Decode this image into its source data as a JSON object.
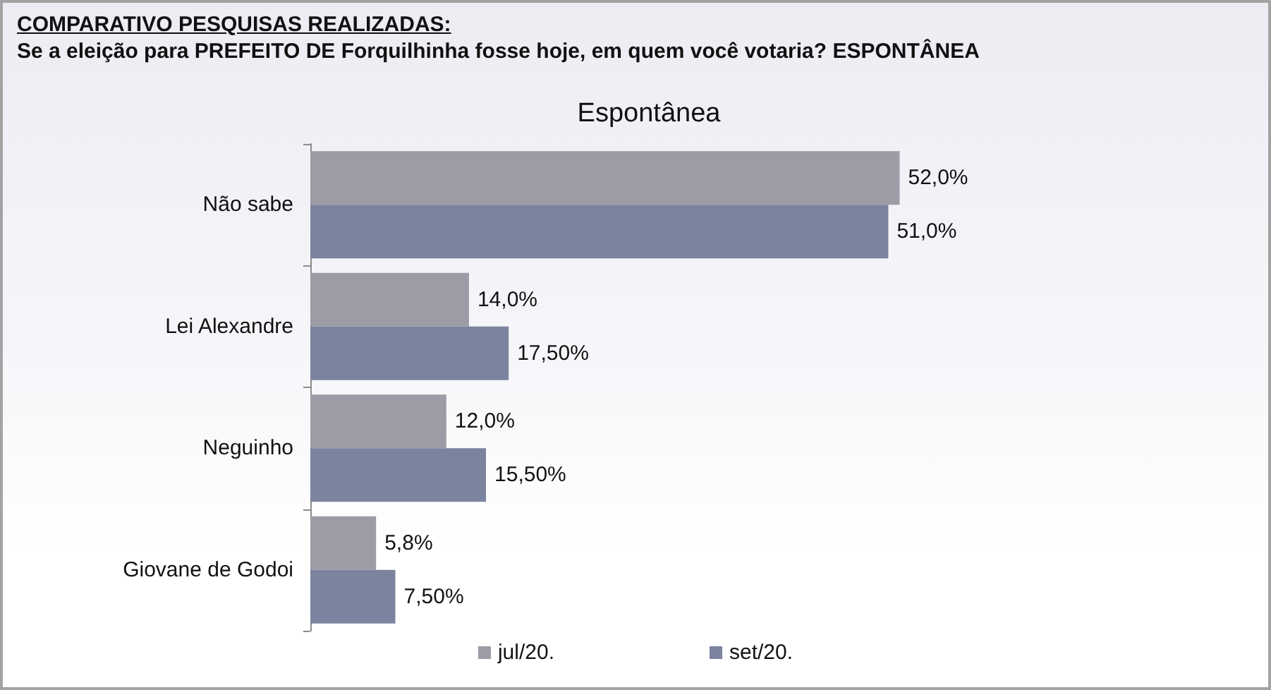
{
  "chart_data": {
    "type": "bar",
    "orientation": "horizontal",
    "title": "COMPARATIVO PESQUISAS REALIZADAS:",
    "subtitle": "Se a eleição para PREFEITO DE Forquilhinha fosse hoje, em quem você votaria? ESPONTÂNEA",
    "annotations": [
      "Espontânea"
    ],
    "categories": [
      "Não sabe",
      "Lei Alexandre",
      "Neguinho",
      "Giovane de Godoi"
    ],
    "series": [
      {
        "name": "jul/20.",
        "color": "#9c9ca6",
        "values": [
          52,
          14,
          12,
          5.8
        ],
        "value_labels": [
          "52,0%",
          "14,0%",
          "12,0%",
          "5,8%"
        ]
      },
      {
        "name": "set/20.",
        "color": "#7b839e",
        "values": [
          51,
          17.5,
          15.5,
          7.5
        ],
        "value_labels": [
          "51,0%",
          "17,50%",
          "15,50%",
          "7,50%"
        ]
      }
    ],
    "legend": "bottom",
    "tick_labels": "y"
  }
}
